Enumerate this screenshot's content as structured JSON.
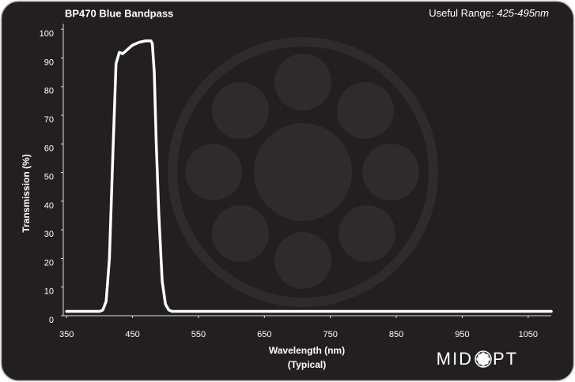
{
  "chart_data": {
    "type": "line",
    "title": "BP470 Blue Bandpass",
    "subtitle_label": "Useful Range:",
    "subtitle_value": "425-495nm",
    "x_label": "Wavelength (nm)",
    "x_label_note": "(Typical)",
    "y_label": "Transmission (%)",
    "brand_left": "MID",
    "brand_right": "PT",
    "color": "#ffffff",
    "x": [
      350,
      400,
      405,
      410,
      415,
      420,
      425,
      430,
      435,
      440,
      445,
      450,
      460,
      470,
      475,
      478,
      480,
      483,
      486,
      490,
      495,
      500,
      505,
      510,
      520,
      560,
      1085
    ],
    "values": [
      1.5,
      1.5,
      2,
      5,
      20,
      55,
      88,
      92,
      91.5,
      92.5,
      93.5,
      94.5,
      95.5,
      96,
      96,
      96,
      95,
      85,
      60,
      35,
      12,
      4,
      2,
      1.5,
      1.5,
      1.5,
      1.5
    ],
    "xlim": [
      345,
      1085
    ],
    "ylim": [
      0,
      102
    ],
    "xticks": [
      350,
      450,
      550,
      650,
      750,
      850,
      950,
      1050
    ],
    "yticks": [
      0,
      10,
      20,
      30,
      40,
      50,
      60,
      70,
      80,
      90,
      100
    ]
  }
}
